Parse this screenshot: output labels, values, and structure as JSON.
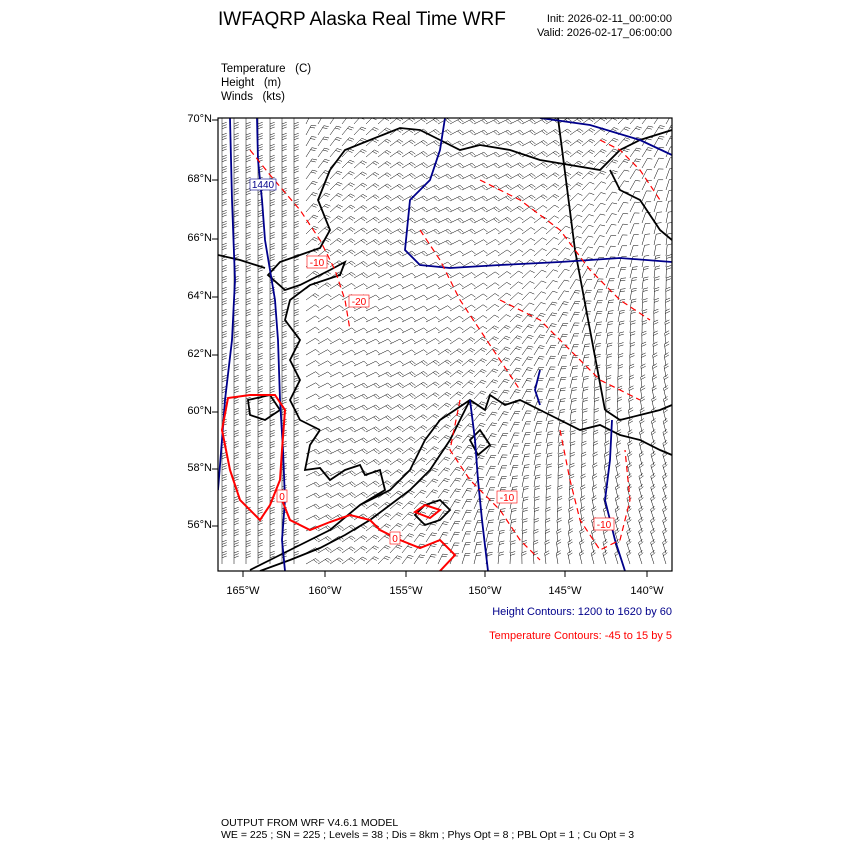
{
  "header": {
    "title": "IWFAQRP Alaska Real Time WRF",
    "init": "Init: 2026-02-11_00:00:00",
    "valid": "Valid: 2026-02-17_06:00:00"
  },
  "fields": [
    {
      "name": "Temperature",
      "unit": "(C)"
    },
    {
      "name": "Height",
      "unit": "(m)"
    },
    {
      "name": "Winds",
      "unit": "(kts)"
    }
  ],
  "map": {
    "lat_labels": [
      "70°N",
      "68°N",
      "66°N",
      "64°N",
      "62°N",
      "60°N",
      "58°N",
      "56°N"
    ],
    "lon_labels": [
      "165°W",
      "160°W",
      "155°W",
      "150°W",
      "145°W",
      "140°W"
    ],
    "height_contour_labels": [
      "1440"
    ],
    "temperature_contour_labels": [
      "-10",
      "-20",
      "-10",
      "-10",
      "0",
      "0"
    ],
    "colors": {
      "height": "#00008b",
      "temperature": "#ff0000",
      "coast": "#000000",
      "wind": "#000000"
    }
  },
  "legend": {
    "height": "Height Contours: 1200 to 1620 by 60",
    "temperature": "Temperature Contours: -45 to 15 by 5"
  },
  "footer": {
    "line1": "OUTPUT FROM WRF V4.6.1 MODEL",
    "line2": "WE = 225 ; SN = 225 ; Levels = 38 ; Dis = 8km ; Phys Opt = 8 ; PBL Opt = 1 ; Cu Opt = 3"
  }
}
